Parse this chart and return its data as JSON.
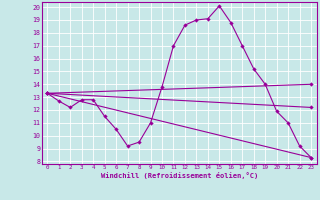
{
  "xlabel": "Windchill (Refroidissement éolien,°C)",
  "xlim": [
    -0.5,
    23.5
  ],
  "ylim": [
    7.8,
    20.4
  ],
  "yticks": [
    8,
    9,
    10,
    11,
    12,
    13,
    14,
    15,
    16,
    17,
    18,
    19,
    20
  ],
  "xticks": [
    0,
    1,
    2,
    3,
    4,
    5,
    6,
    7,
    8,
    9,
    10,
    11,
    12,
    13,
    14,
    15,
    16,
    17,
    18,
    19,
    20,
    21,
    22,
    23
  ],
  "background_color": "#c8e8e8",
  "line_color": "#990099",
  "lines": [
    {
      "x": [
        0,
        1,
        2,
        3,
        4,
        5,
        6,
        7,
        8,
        9,
        10,
        11,
        12,
        13,
        14,
        15,
        16,
        17,
        18,
        19,
        20,
        21,
        22,
        23
      ],
      "y": [
        13.3,
        12.7,
        12.2,
        12.8,
        12.8,
        11.5,
        10.5,
        9.2,
        9.5,
        11.0,
        13.8,
        17.0,
        18.6,
        19.0,
        19.1,
        20.1,
        18.8,
        17.0,
        15.2,
        14.0,
        11.9,
        11.0,
        9.2,
        8.3
      ]
    },
    {
      "x": [
        0,
        23
      ],
      "y": [
        13.3,
        8.3
      ]
    },
    {
      "x": [
        0,
        23
      ],
      "y": [
        13.3,
        14.0
      ]
    },
    {
      "x": [
        0,
        23
      ],
      "y": [
        13.3,
        12.2
      ]
    }
  ]
}
